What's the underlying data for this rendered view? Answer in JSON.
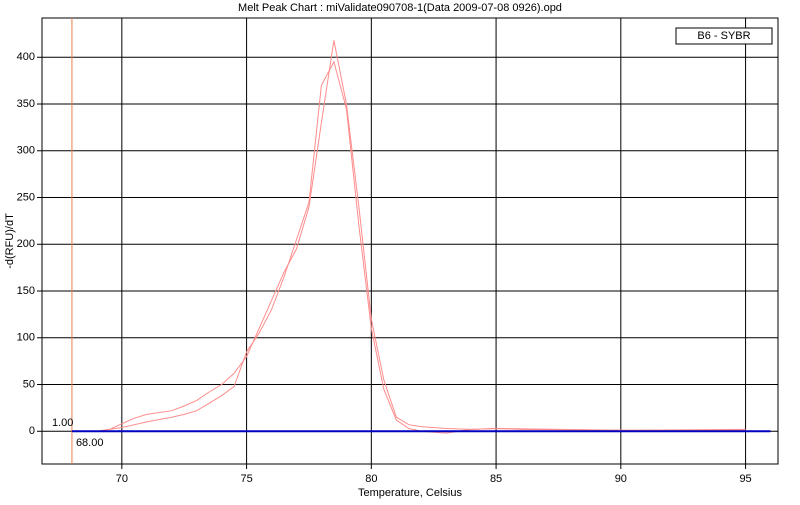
{
  "chart_data": {
    "type": "line",
    "title": "Melt Peak Chart : miValidate090708-1(Data 2009-07-08 0926).opd",
    "x_label": "Temperature, Celsius",
    "y_label": "-d(RFU)/dT",
    "legend_label": "B6 - SYBR",
    "xlim": [
      66.8,
      96.3
    ],
    "ylim": [
      -35,
      442
    ],
    "xticks": [
      70,
      75,
      80,
      85,
      90,
      95
    ],
    "yticks": [
      0,
      50,
      100,
      150,
      200,
      250,
      300,
      350,
      400
    ],
    "grid": true,
    "marker": {
      "x": {
        "value": 68,
        "label": "68.00"
      },
      "y_text": "1.00",
      "color": "#e8804a"
    },
    "series": [
      {
        "color": "#ff8c8c",
        "x": [
          68,
          69,
          69.5,
          70,
          70.5,
          71,
          72,
          72.5,
          73,
          73.5,
          74,
          74.5,
          75,
          75.5,
          76,
          76.5,
          77,
          77.5,
          78,
          78.5,
          79,
          79.5,
          80,
          80.5,
          81,
          81.5,
          82,
          83,
          84,
          85,
          86,
          90,
          95
        ],
        "values": [
          0,
          0,
          2,
          8,
          14,
          18,
          22,
          27,
          33,
          42,
          50,
          62,
          80,
          110,
          140,
          170,
          195,
          240,
          330,
          418,
          350,
          240,
          120,
          55,
          15,
          7,
          5,
          3,
          2,
          3,
          2,
          1,
          2
        ]
      },
      {
        "color": "#ff8c8c",
        "x": [
          68,
          69,
          70,
          71,
          72,
          72.5,
          73,
          73.5,
          74,
          74.5,
          75,
          75.5,
          76,
          76.5,
          77,
          77.5,
          78,
          78.5,
          79,
          79.5,
          80,
          80.5,
          81,
          81.5,
          82,
          83,
          84,
          85,
          90,
          95
        ],
        "values": [
          0,
          0,
          4,
          10,
          15,
          18,
          22,
          30,
          38,
          48,
          85,
          105,
          130,
          165,
          205,
          245,
          370,
          395,
          345,
          220,
          110,
          45,
          12,
          3,
          0,
          -2,
          2,
          3,
          1,
          1
        ]
      },
      {
        "color": "#0000c0",
        "x": [
          68,
          96
        ],
        "values": [
          0,
          0
        ]
      }
    ]
  }
}
